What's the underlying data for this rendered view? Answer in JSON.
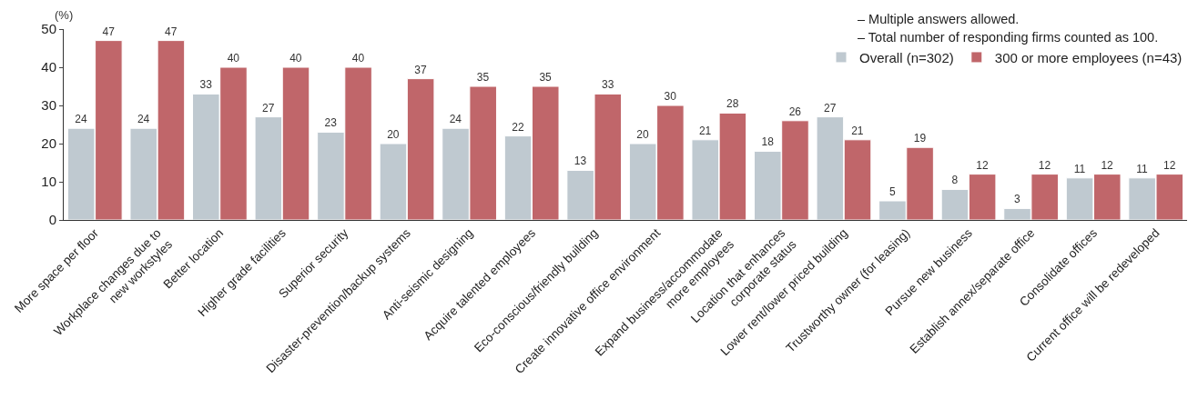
{
  "chart_data": {
    "type": "bar",
    "ylabel": "(%)",
    "categories": [
      "More space per floor",
      "Workplace changes due to\nnew workstyles",
      "Better location",
      "Higher grade facilities",
      "Superior security",
      "Disaster-prevention/backup systems",
      "Anti-seismic designing",
      "Acquire talented employees",
      "Eco-conscious/friendly building",
      "Create innovative office environment",
      "Expand business/accommodate\nmore employees",
      "Location that enhances\ncorporate status",
      "Lower rent/lower priced building",
      "Trustworthy owner (for leasing)",
      "Pursue new business",
      "Establish annex/separate office",
      "Consolidate offices",
      "Current office will be redeveloped"
    ],
    "series": [
      {
        "name": "Overall (n=302)",
        "color": "#bfc9d0",
        "values": [
          24,
          24,
          33,
          27,
          23,
          20,
          24,
          22,
          13,
          20,
          21,
          18,
          27,
          5,
          8,
          3,
          11,
          11
        ]
      },
      {
        "name": "300 or more employees (n=43)",
        "color": "#c0666a",
        "values": [
          47,
          47,
          40,
          40,
          40,
          37,
          35,
          35,
          33,
          30,
          28,
          26,
          21,
          19,
          12,
          12,
          12,
          12
        ]
      }
    ],
    "ylim": [
      0,
      50
    ],
    "yticks": [
      0,
      10,
      20,
      30,
      40,
      50
    ],
    "grid": false,
    "data_labels": true,
    "legend": "top right",
    "annotations": [
      "– Multiple answers allowed.",
      "– Total number of responding firms counted as 100."
    ]
  }
}
